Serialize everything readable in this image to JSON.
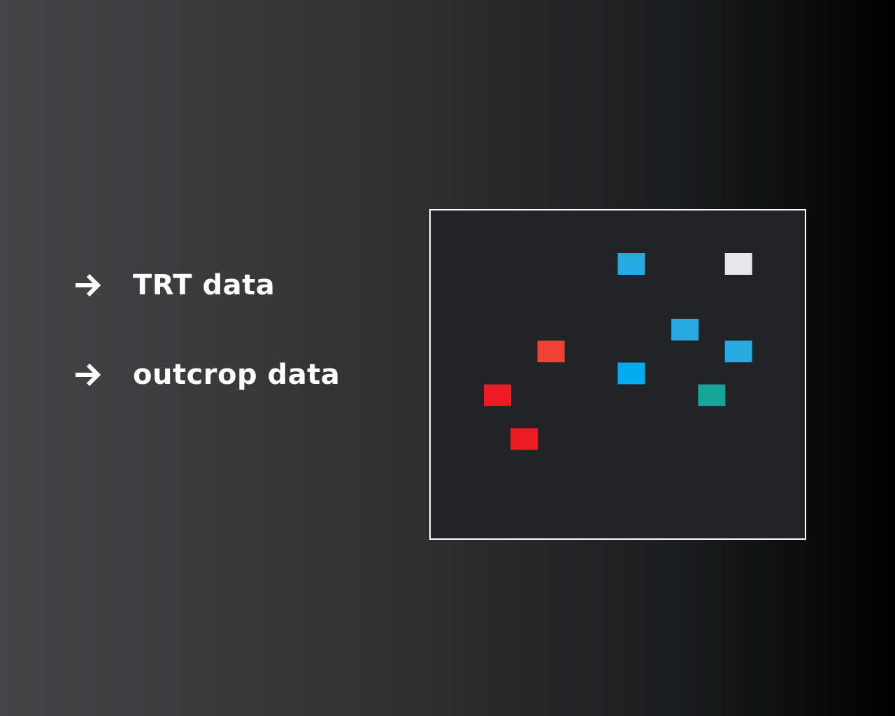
{
  "bullets": [
    {
      "label": "TRT data",
      "icon": "arrow-right-icon"
    },
    {
      "label": "outcrop data",
      "icon": "arrow-right-icon"
    }
  ],
  "diagram": {
    "markers": [
      {
        "color": "#27a9e1",
        "col": 5,
        "row": 0
      },
      {
        "color": "#e6e7e8",
        "col": 9,
        "row": 0
      },
      {
        "color": "#27a9e1",
        "col": 7,
        "row": 3
      },
      {
        "color": "#ef4136",
        "col": 2,
        "row": 4
      },
      {
        "color": "#27a9e1",
        "col": 9,
        "row": 4
      },
      {
        "color": "#00aeef",
        "col": 5,
        "row": 5
      },
      {
        "color": "#ed1c24",
        "col": 0,
        "row": 6
      },
      {
        "color": "#16a599",
        "col": 8,
        "row": 6
      },
      {
        "color": "#ed1c24",
        "col": 1,
        "row": 8
      }
    ]
  }
}
